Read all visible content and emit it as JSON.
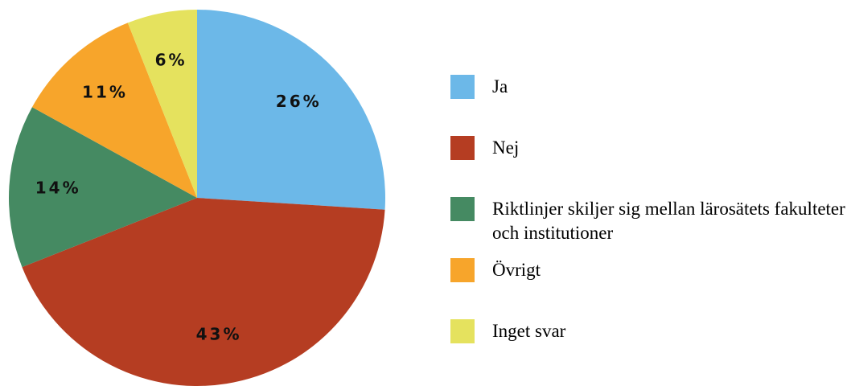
{
  "chart_data": {
    "type": "pie",
    "categories": [
      "Ja",
      "Nej",
      "Riktlinjer skiljer sig mellan lärosätets fakulteter och institutioner",
      "Övrigt",
      "Inget svar"
    ],
    "values": [
      26,
      43,
      14,
      11,
      6
    ],
    "value_labels": [
      "26%",
      "43%",
      "14%",
      "11%",
      "6%"
    ],
    "colors": [
      "#6cb8e8",
      "#b53d22",
      "#458a62",
      "#f7a52b",
      "#e5e25e"
    ],
    "legend": "right"
  }
}
